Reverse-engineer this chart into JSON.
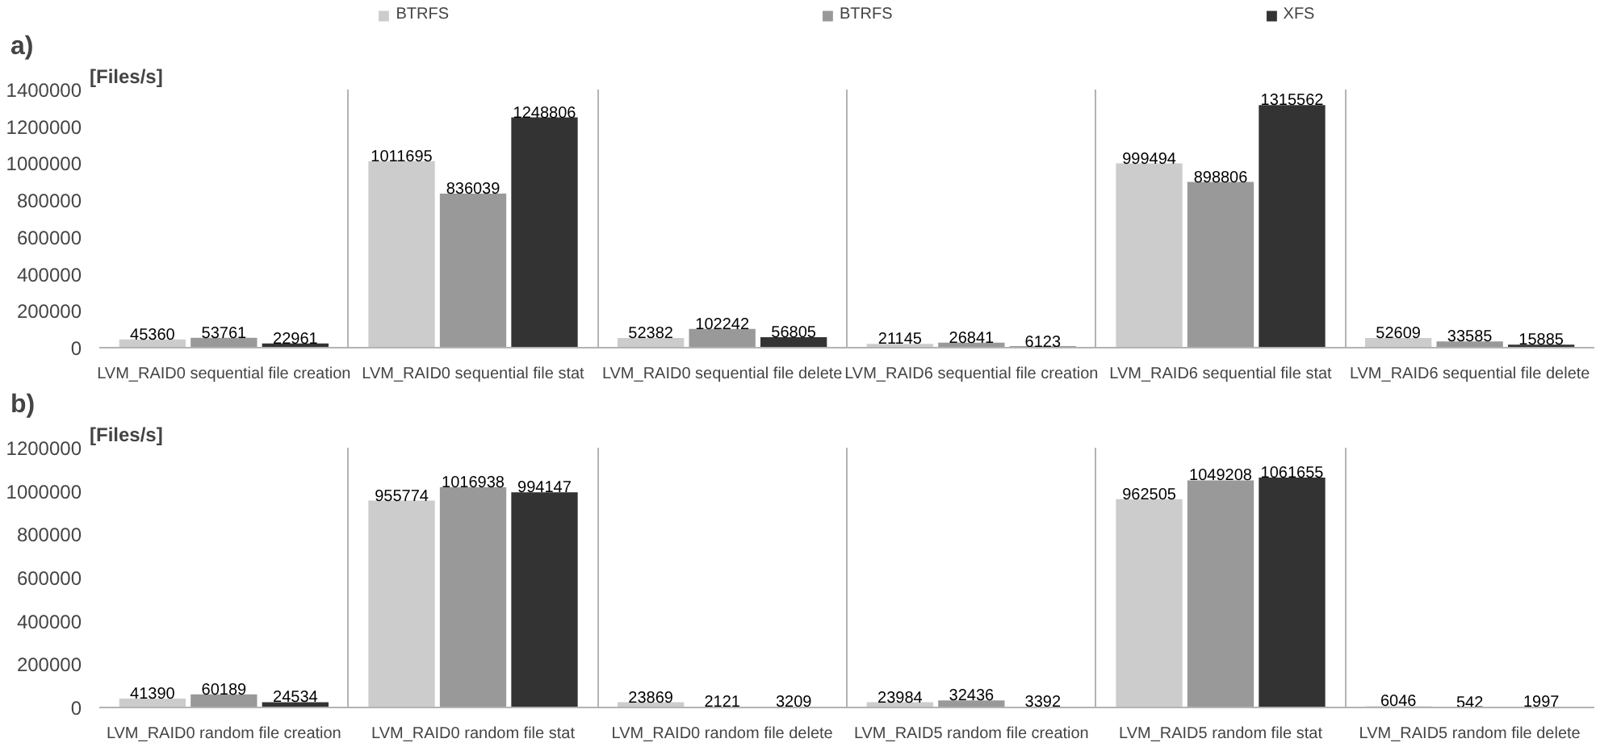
{
  "chart_data": [
    {
      "type": "bar",
      "title": "a)",
      "ylabel": "[Files/s]",
      "categories": [
        "LVM_RAID0 sequential file creation",
        "LVM_RAID0 sequential file stat",
        "LVM_RAID0 sequential file delete",
        "LVM_RAID6 sequential file creation",
        "LVM_RAID6 sequential file stat",
        "LVM_RAID6 sequential file delete"
      ],
      "series": [
        {
          "name": "BTRFS",
          "color": "#cccccc",
          "values": [
            45360,
            1011695,
            52382,
            21145,
            999494,
            52609
          ]
        },
        {
          "name": "BTRFS",
          "color": "#999999",
          "values": [
            53761,
            836039,
            102242,
            26841,
            898806,
            33585
          ]
        },
        {
          "name": "XFS",
          "color": "#333333",
          "values": [
            22961,
            1248806,
            56805,
            6123,
            1315562,
            15885
          ]
        }
      ],
      "ylim": [
        0,
        1400000
      ],
      "yticks": [
        0,
        200000,
        400000,
        600000,
        800000,
        1000000,
        1200000,
        1400000
      ],
      "data_labels": true,
      "legend": "top",
      "grid": false
    },
    {
      "type": "bar",
      "title": "b)",
      "ylabel": "[Files/s]",
      "categories": [
        "LVM_RAID0 random file creation",
        "LVM_RAID0 random file stat",
        "LVM_RAID0 random file delete",
        "LVM_RAID5 random file creation",
        "LVM_RAID5 random file stat",
        "LVM_RAID5 random file delete"
      ],
      "series": [
        {
          "color": "#cccccc",
          "values": [
            41390,
            955774,
            23869,
            23984,
            962505,
            6046
          ]
        },
        {
          "color": "#999999",
          "values": [
            60189,
            1016938,
            2121,
            32436,
            1049208,
            542
          ]
        },
        {
          "color": "#333333",
          "values": [
            24534,
            994147,
            3209,
            3392,
            1061655,
            1997
          ]
        }
      ],
      "ylim": [
        0,
        1200000
      ],
      "yticks": [
        0,
        200000,
        400000,
        600000,
        800000,
        1000000,
        1200000
      ],
      "data_labels": true,
      "grid": false
    }
  ]
}
